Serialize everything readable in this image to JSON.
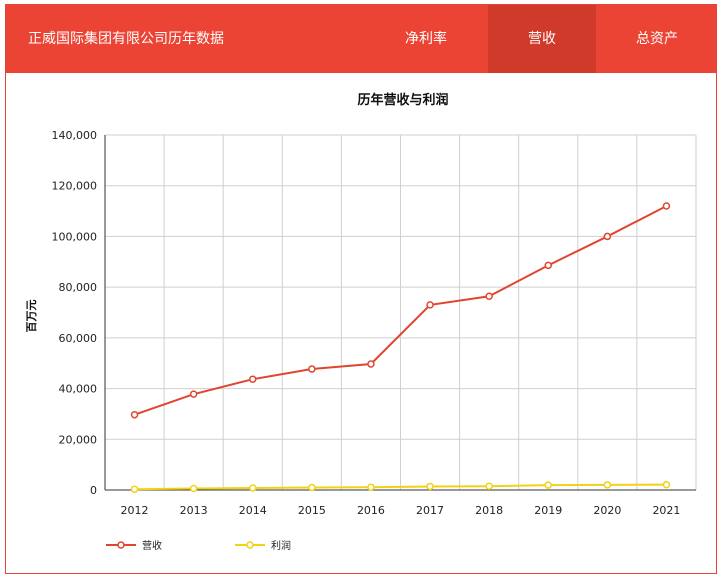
{
  "header": {
    "brand": "正威国际集团有限公司历年数据",
    "tabs": [
      {
        "label": "净利率",
        "active": false
      },
      {
        "label": "营收",
        "active": true
      },
      {
        "label": "总资产",
        "active": false
      }
    ]
  },
  "colors": {
    "header_bg": "#ec4434",
    "active_tab_bg": "#cf3a2b",
    "revenue_line": "#e0462f",
    "profit_line": "#f2d217"
  },
  "chart_data": {
    "type": "line",
    "title": "历年营收与利润",
    "ylabel": "百万元",
    "xlabel": "",
    "categories": [
      "2012",
      "2013",
      "2014",
      "2015",
      "2016",
      "2017",
      "2018",
      "2019",
      "2020",
      "2021"
    ],
    "ylim": [
      0,
      140000
    ],
    "yticks": [
      0,
      20000,
      40000,
      60000,
      80000,
      100000,
      120000,
      140000
    ],
    "ytick_labels": [
      "0",
      "20,000",
      "40,000",
      "60,000",
      "80,000",
      "100,000",
      "120,000",
      "140,000"
    ],
    "grid": true,
    "legend_position": "bottom-left",
    "series": [
      {
        "name": "营收",
        "color": "#e0462f",
        "values": [
          29700,
          37800,
          43700,
          47700,
          49700,
          73000,
          76400,
          88600,
          100000,
          112000
        ]
      },
      {
        "name": "利润",
        "color": "#f2d217",
        "values": [
          300,
          600,
          800,
          1000,
          1100,
          1400,
          1500,
          1900,
          2000,
          2100
        ]
      }
    ]
  }
}
